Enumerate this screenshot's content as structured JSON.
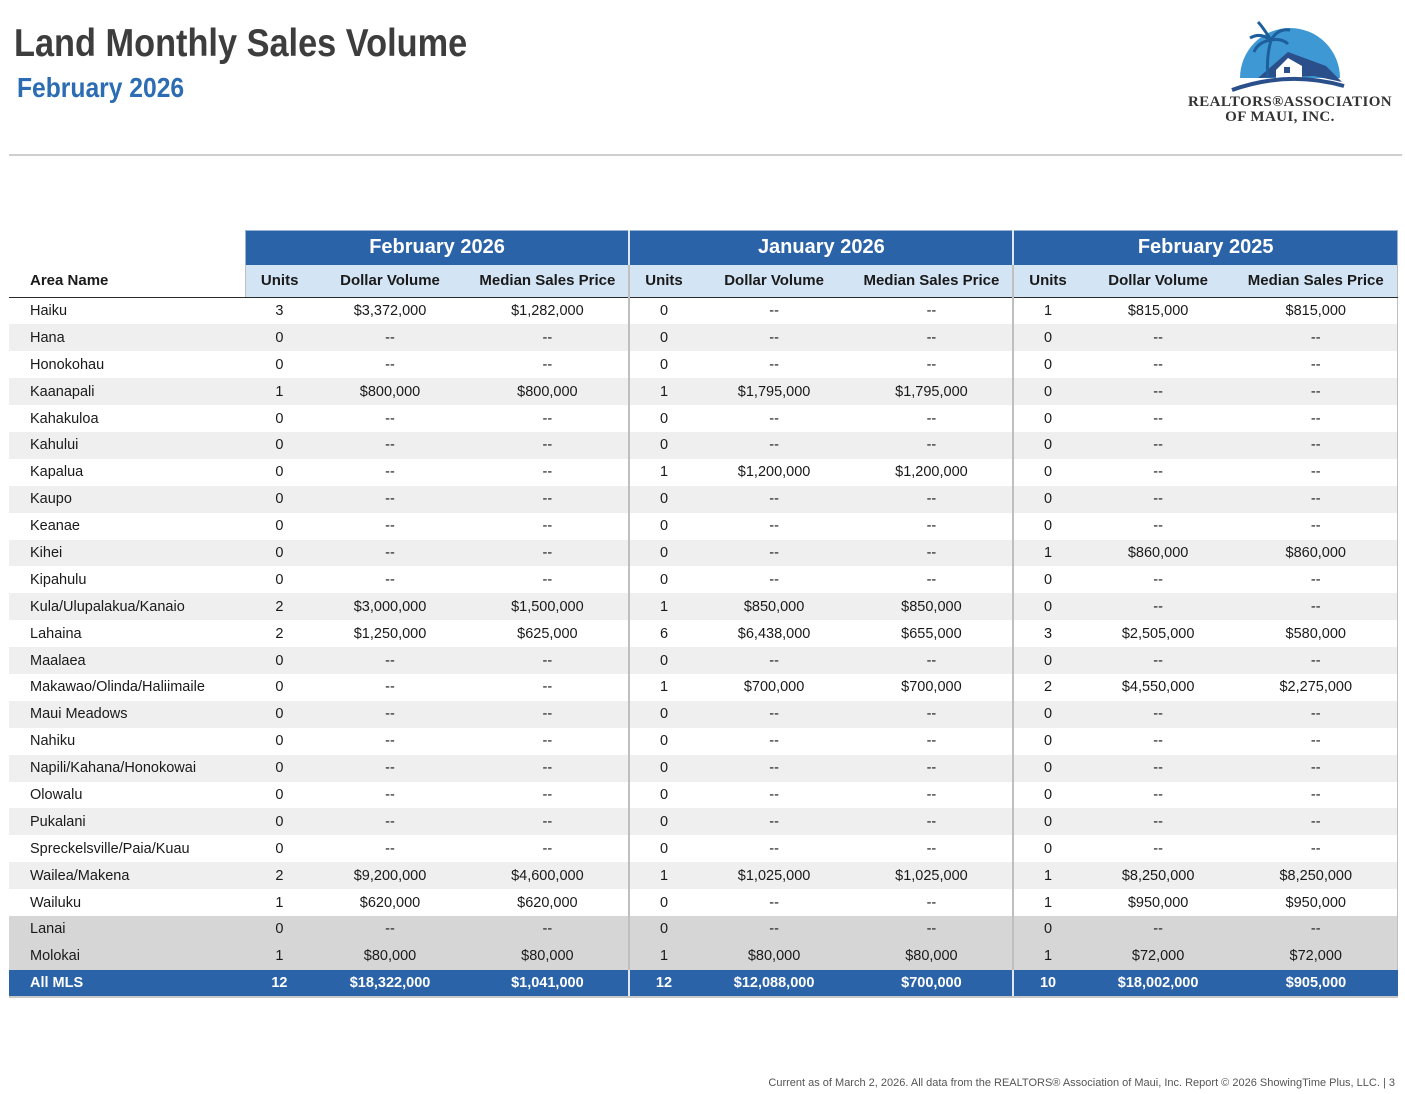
{
  "header": {
    "title": "Land Monthly Sales Volume",
    "subtitle": "February 2026"
  },
  "logo": {
    "line1": "REALTORS®ASSOCIATION",
    "line2": "OF MAUI, INC.",
    "colors": {
      "sky": "#2e8fd0",
      "roof": "#2b4f8a",
      "palm": "#1d5f9c"
    }
  },
  "table": {
    "area_header": "Area Name",
    "periods": [
      {
        "label": "February 2026",
        "units": "Units",
        "volume": "Dollar Volume",
        "median": "Median Sales Price"
      },
      {
        "label": "January 2026",
        "units": "Units",
        "volume": "Dollar Volume",
        "median": "Median Sales Price"
      },
      {
        "label": "February 2025",
        "units": "Units",
        "volume": "Dollar Volume",
        "median": "Median Sales Price"
      }
    ],
    "rows": [
      {
        "area": "Haiku",
        "cells": [
          "3",
          "$3,372,000",
          "$1,282,000",
          "0",
          "--",
          "--",
          "1",
          "$815,000",
          "$815,000"
        ]
      },
      {
        "area": "Hana",
        "cells": [
          "0",
          "--",
          "--",
          "0",
          "--",
          "--",
          "0",
          "--",
          "--"
        ]
      },
      {
        "area": "Honokohau",
        "cells": [
          "0",
          "--",
          "--",
          "0",
          "--",
          "--",
          "0",
          "--",
          "--"
        ]
      },
      {
        "area": "Kaanapali",
        "cells": [
          "1",
          "$800,000",
          "$800,000",
          "1",
          "$1,795,000",
          "$1,795,000",
          "0",
          "--",
          "--"
        ]
      },
      {
        "area": "Kahakuloa",
        "cells": [
          "0",
          "--",
          "--",
          "0",
          "--",
          "--",
          "0",
          "--",
          "--"
        ]
      },
      {
        "area": "Kahului",
        "cells": [
          "0",
          "--",
          "--",
          "0",
          "--",
          "--",
          "0",
          "--",
          "--"
        ]
      },
      {
        "area": "Kapalua",
        "cells": [
          "0",
          "--",
          "--",
          "1",
          "$1,200,000",
          "$1,200,000",
          "0",
          "--",
          "--"
        ]
      },
      {
        "area": "Kaupo",
        "cells": [
          "0",
          "--",
          "--",
          "0",
          "--",
          "--",
          "0",
          "--",
          "--"
        ]
      },
      {
        "area": "Keanae",
        "cells": [
          "0",
          "--",
          "--",
          "0",
          "--",
          "--",
          "0",
          "--",
          "--"
        ]
      },
      {
        "area": "Kihei",
        "cells": [
          "0",
          "--",
          "--",
          "0",
          "--",
          "--",
          "1",
          "$860,000",
          "$860,000"
        ]
      },
      {
        "area": "Kipahulu",
        "cells": [
          "0",
          "--",
          "--",
          "0",
          "--",
          "--",
          "0",
          "--",
          "--"
        ]
      },
      {
        "area": "Kula/Ulupalakua/Kanaio",
        "cells": [
          "2",
          "$3,000,000",
          "$1,500,000",
          "1",
          "$850,000",
          "$850,000",
          "0",
          "--",
          "--"
        ]
      },
      {
        "area": "Lahaina",
        "cells": [
          "2",
          "$1,250,000",
          "$625,000",
          "6",
          "$6,438,000",
          "$655,000",
          "3",
          "$2,505,000",
          "$580,000"
        ]
      },
      {
        "area": "Maalaea",
        "cells": [
          "0",
          "--",
          "--",
          "0",
          "--",
          "--",
          "0",
          "--",
          "--"
        ]
      },
      {
        "area": "Makawao/Olinda/Haliimaile",
        "cells": [
          "0",
          "--",
          "--",
          "1",
          "$700,000",
          "$700,000",
          "2",
          "$4,550,000",
          "$2,275,000"
        ]
      },
      {
        "area": "Maui Meadows",
        "cells": [
          "0",
          "--",
          "--",
          "0",
          "--",
          "--",
          "0",
          "--",
          "--"
        ]
      },
      {
        "area": "Nahiku",
        "cells": [
          "0",
          "--",
          "--",
          "0",
          "--",
          "--",
          "0",
          "--",
          "--"
        ]
      },
      {
        "area": "Napili/Kahana/Honokowai",
        "cells": [
          "0",
          "--",
          "--",
          "0",
          "--",
          "--",
          "0",
          "--",
          "--"
        ]
      },
      {
        "area": "Olowalu",
        "cells": [
          "0",
          "--",
          "--",
          "0",
          "--",
          "--",
          "0",
          "--",
          "--"
        ]
      },
      {
        "area": "Pukalani",
        "cells": [
          "0",
          "--",
          "--",
          "0",
          "--",
          "--",
          "0",
          "--",
          "--"
        ]
      },
      {
        "area": "Spreckelsville/Paia/Kuau",
        "cells": [
          "0",
          "--",
          "--",
          "0",
          "--",
          "--",
          "0",
          "--",
          "--"
        ]
      },
      {
        "area": "Wailea/Makena",
        "cells": [
          "2",
          "$9,200,000",
          "$4,600,000",
          "1",
          "$1,025,000",
          "$1,025,000",
          "1",
          "$8,250,000",
          "$8,250,000"
        ]
      },
      {
        "area": "Wailuku",
        "cells": [
          "1",
          "$620,000",
          "$620,000",
          "0",
          "--",
          "--",
          "1",
          "$950,000",
          "$950,000"
        ]
      },
      {
        "area": "Lanai",
        "island": true,
        "cells": [
          "0",
          "--",
          "--",
          "0",
          "--",
          "--",
          "0",
          "--",
          "--"
        ]
      },
      {
        "area": "Molokai",
        "island": true,
        "cells": [
          "1",
          "$80,000",
          "$80,000",
          "1",
          "$80,000",
          "$80,000",
          "1",
          "$72,000",
          "$72,000"
        ]
      }
    ],
    "total": {
      "area": "All MLS",
      "cells": [
        "12",
        "$18,322,000",
        "$1,041,000",
        "12",
        "$12,088,000",
        "$700,000",
        "10",
        "$18,002,000",
        "$905,000"
      ]
    }
  },
  "footer": {
    "note": "Current as of March 2, 2026. All data from the REALTORS® Association of Maui, Inc. Report © 2026 ShowingTime Plus, LLC.  |  3"
  }
}
